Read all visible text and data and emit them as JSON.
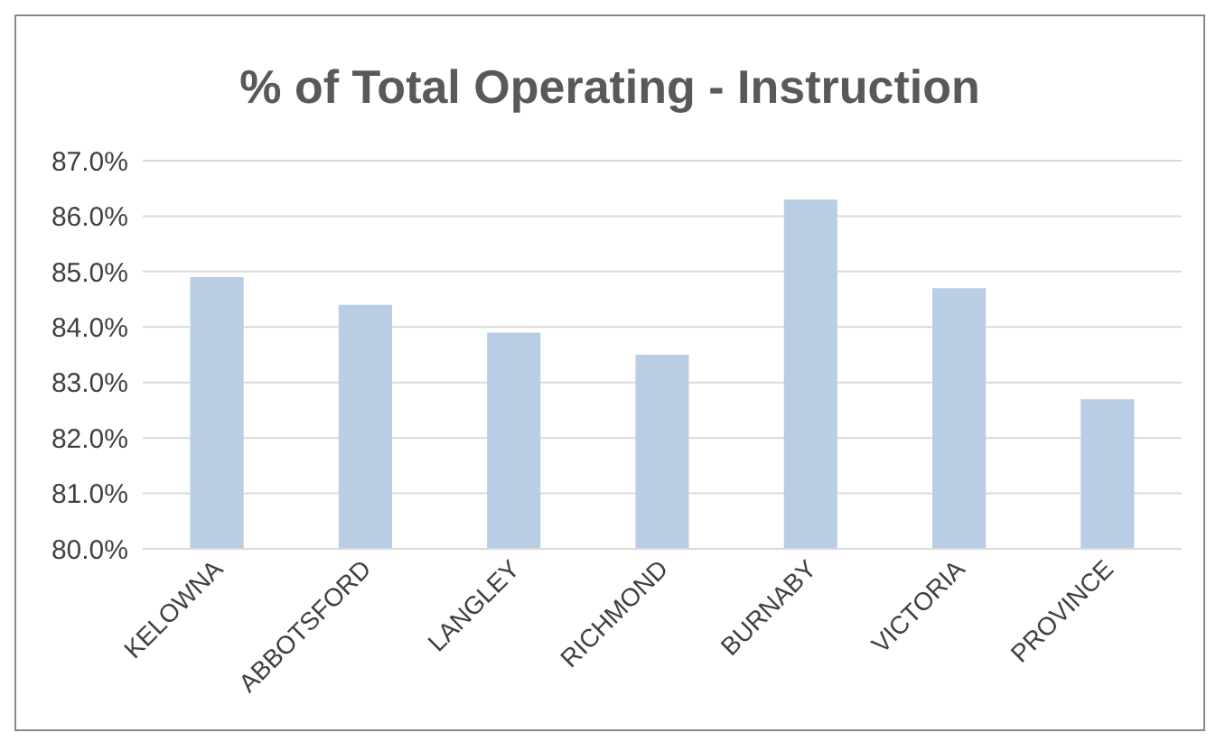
{
  "chart_data": {
    "type": "bar",
    "title": "% of Total Operating - Instruction",
    "categories": [
      "KELOWNA",
      "ABBOTSFORD",
      "LANGLEY",
      "RICHMOND",
      "BURNABY",
      "VICTORIA",
      "PROVINCE"
    ],
    "values": [
      84.9,
      84.4,
      83.9,
      83.5,
      86.3,
      84.7,
      82.7
    ],
    "color": "#b9cde5",
    "ylim": [
      80,
      87
    ],
    "yticks": [
      {
        "value": 80,
        "label": "80.0%"
      },
      {
        "value": 81,
        "label": "81.0%"
      },
      {
        "value": 82,
        "label": "82.0%"
      },
      {
        "value": 83,
        "label": "83.0%"
      },
      {
        "value": 84,
        "label": "84.0%"
      },
      {
        "value": 85,
        "label": "85.0%"
      },
      {
        "value": 86,
        "label": "86.0%"
      },
      {
        "value": 87,
        "label": "87.0%"
      }
    ],
    "grid": "y",
    "legend": false
  }
}
